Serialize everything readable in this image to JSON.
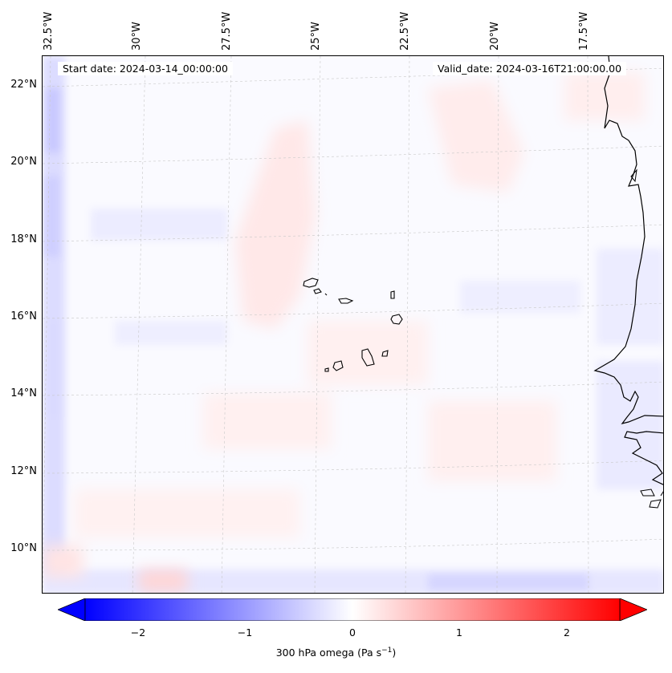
{
  "header": {
    "start_date": "Start date: 2024-03-14_00:00:00",
    "valid_date": "Valid_date: 2024-03-16T21:00:00.00"
  },
  "map": {
    "lon_labels": [
      "32.5°W",
      "30°W",
      "27.5°W",
      "25°W",
      "22.5°W",
      "20°W",
      "17.5°W"
    ],
    "lat_labels": [
      "22°N",
      "20°N",
      "18°N",
      "16°N",
      "14°N",
      "12°N",
      "10°N"
    ],
    "gridlines": true
  },
  "colorbar": {
    "ticks": [
      "−2",
      "−1",
      "0",
      "1",
      "2"
    ],
    "title_main": "300 hPa omega (Pa s",
    "title_sup": "−1",
    "title_end": ")",
    "colormap": "bwr",
    "low_color": "#0000ff",
    "mid_color": "#ffffff",
    "high_color": "#ff0000",
    "range": [
      -2.5,
      2.5
    ]
  }
}
